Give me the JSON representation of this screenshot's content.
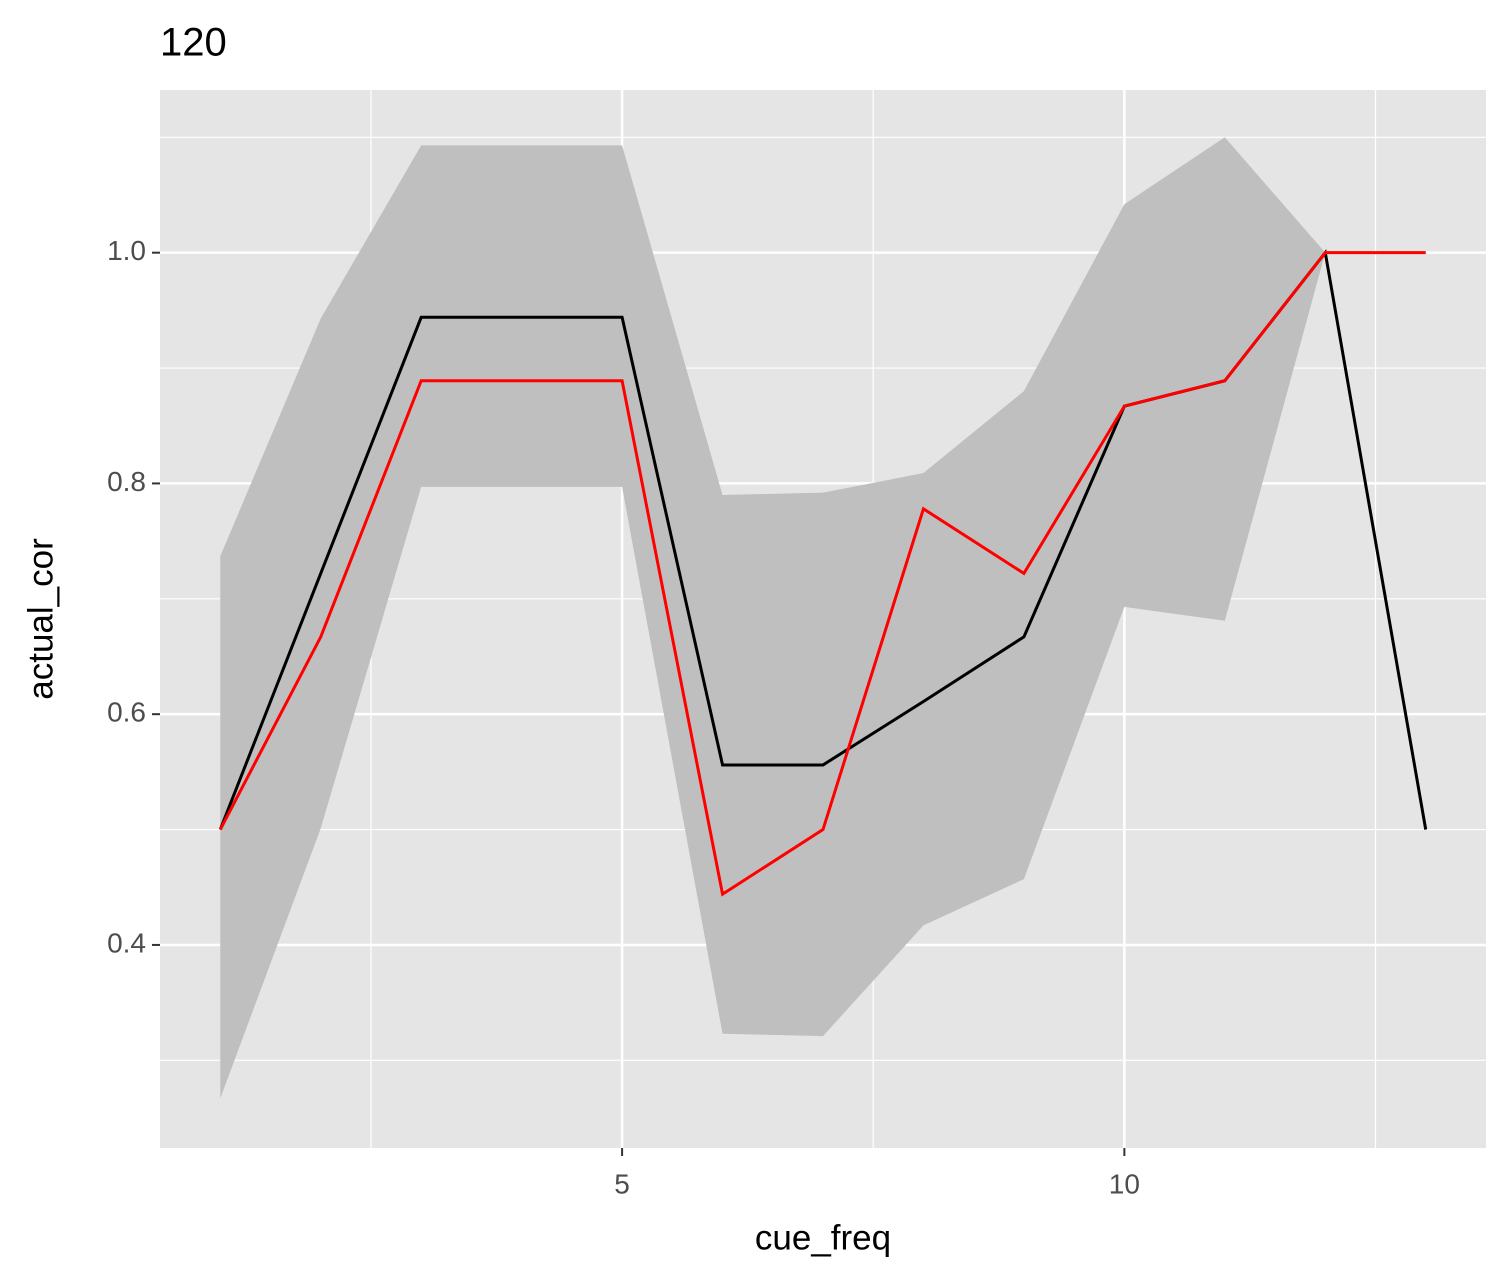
{
  "chart_data": {
    "type": "line",
    "title": "120",
    "x_label": "cue_freq",
    "y_label": "actual_cor",
    "x": [
      1,
      2,
      3,
      4,
      5,
      6,
      7,
      8,
      9,
      10,
      11,
      12,
      13
    ],
    "ribbon": {
      "color": "#bfbfbf",
      "upper": [
        0.737,
        0.943,
        1.093,
        1.093,
        1.093,
        0.79,
        0.792,
        0.809,
        0.88,
        1.042,
        1.1,
        1.0,
        null
      ],
      "lower": [
        0.267,
        0.501,
        0.797,
        0.797,
        0.797,
        0.323,
        0.321,
        0.417,
        0.457,
        0.693,
        0.681,
        1.0,
        null
      ]
    },
    "series": [
      {
        "color": "#000000",
        "values": [
          0.5,
          0.722,
          0.944,
          0.944,
          0.944,
          0.556,
          0.556,
          0.611,
          0.667,
          0.867,
          0.889,
          1.0,
          0.5
        ]
      },
      {
        "color": "#ff0000",
        "values": [
          0.5,
          0.667,
          0.889,
          0.889,
          0.889,
          0.444,
          0.5,
          0.778,
          0.722,
          0.867,
          0.889,
          1.0,
          1.0
        ]
      }
    ],
    "xlim": [
      0.4,
      13.6
    ],
    "ylim": [
      0.224,
      1.141
    ],
    "xticks": [
      5,
      10
    ],
    "yticks": [
      {
        "value": 0.4,
        "label": "0.4"
      },
      {
        "value": 0.6,
        "label": "0.6"
      },
      {
        "value": 0.8,
        "label": "0.8"
      },
      {
        "value": 1.0,
        "label": "1.0"
      }
    ],
    "x_minor_breaks": [
      2.5,
      7.5,
      12.5
    ],
    "y_minor_breaks": [
      0.3,
      0.5,
      0.7,
      0.9,
      1.1
    ],
    "grid": true,
    "panel_color": "#e5e5e5"
  }
}
